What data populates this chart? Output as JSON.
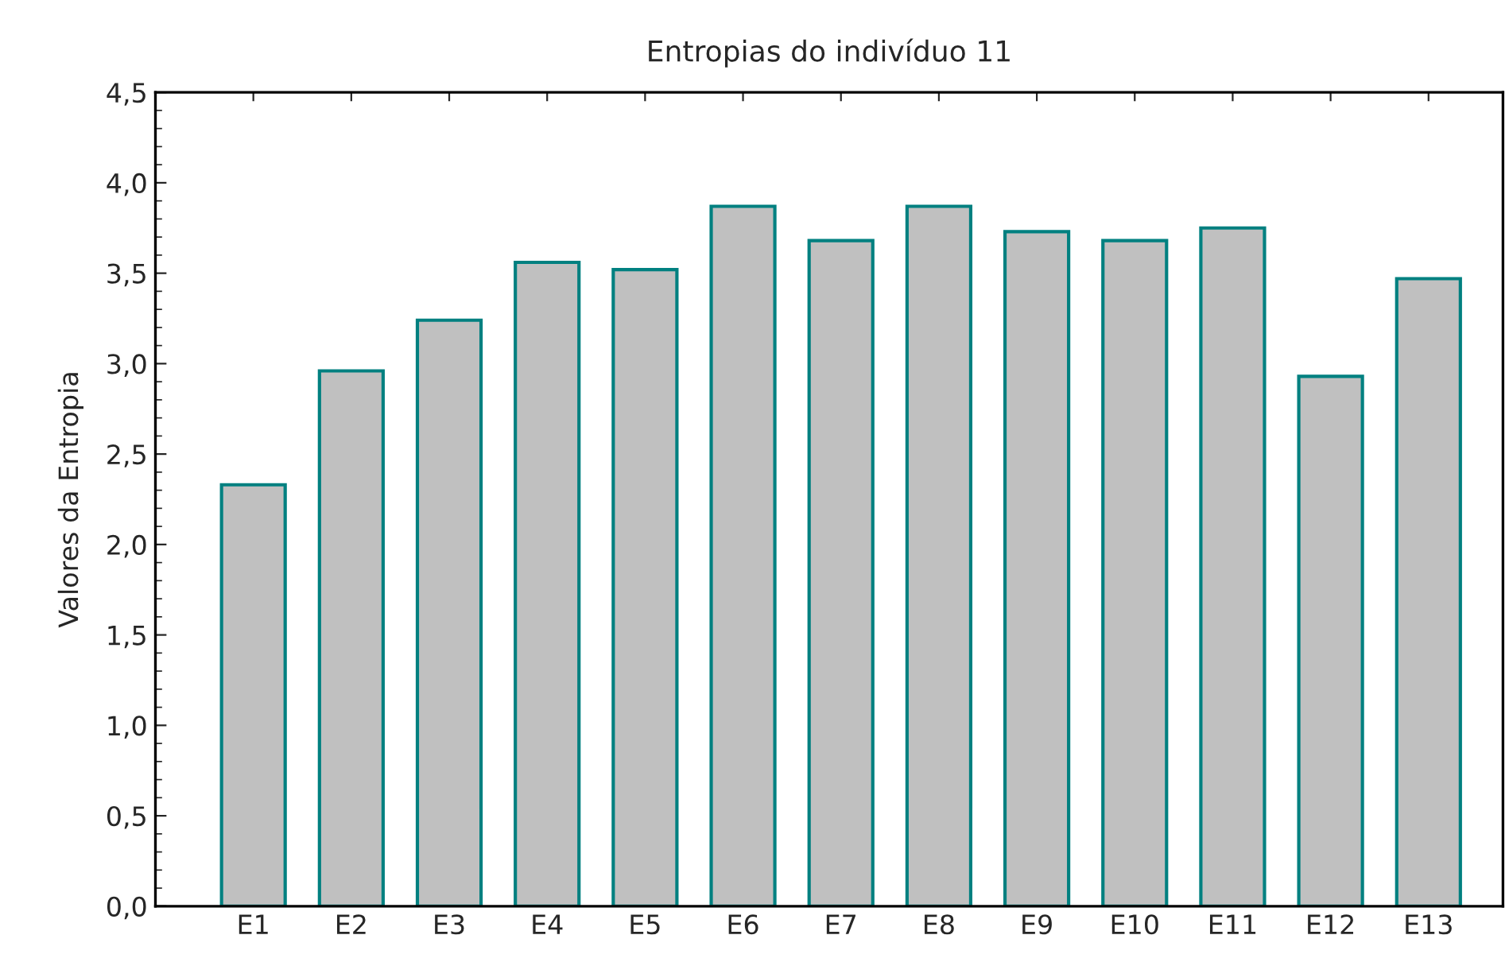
{
  "chart_data": {
    "type": "bar",
    "title": "Entropias do indivíduo 11",
    "ylabel": "Valores da Entropia",
    "categories": [
      "E1",
      "E2",
      "E3",
      "E4",
      "E5",
      "E6",
      "E7",
      "E8",
      "E9",
      "E10",
      "E11",
      "E12",
      "E13"
    ],
    "values": [
      2.33,
      2.96,
      3.24,
      3.56,
      3.52,
      3.87,
      3.68,
      3.87,
      3.73,
      3.68,
      3.75,
      2.93,
      3.47
    ],
    "color": "#c0c0c0",
    "ylim": [
      0,
      4.5
    ],
    "yticks": [
      {
        "value": 0,
        "label": "0,0"
      },
      {
        "value": 0.5,
        "label": "0,5"
      },
      {
        "value": 1,
        "label": "1,0"
      },
      {
        "value": 1.5,
        "label": "1,5"
      },
      {
        "value": 2,
        "label": "2,0"
      },
      {
        "value": 2.5,
        "label": "2,5"
      },
      {
        "value": 3,
        "label": "3,0"
      },
      {
        "value": 3.5,
        "label": "3,5"
      },
      {
        "value": 4,
        "label": "4,0"
      },
      {
        "value": 4.5,
        "label": "4,5"
      }
    ],
    "grid": false
  }
}
